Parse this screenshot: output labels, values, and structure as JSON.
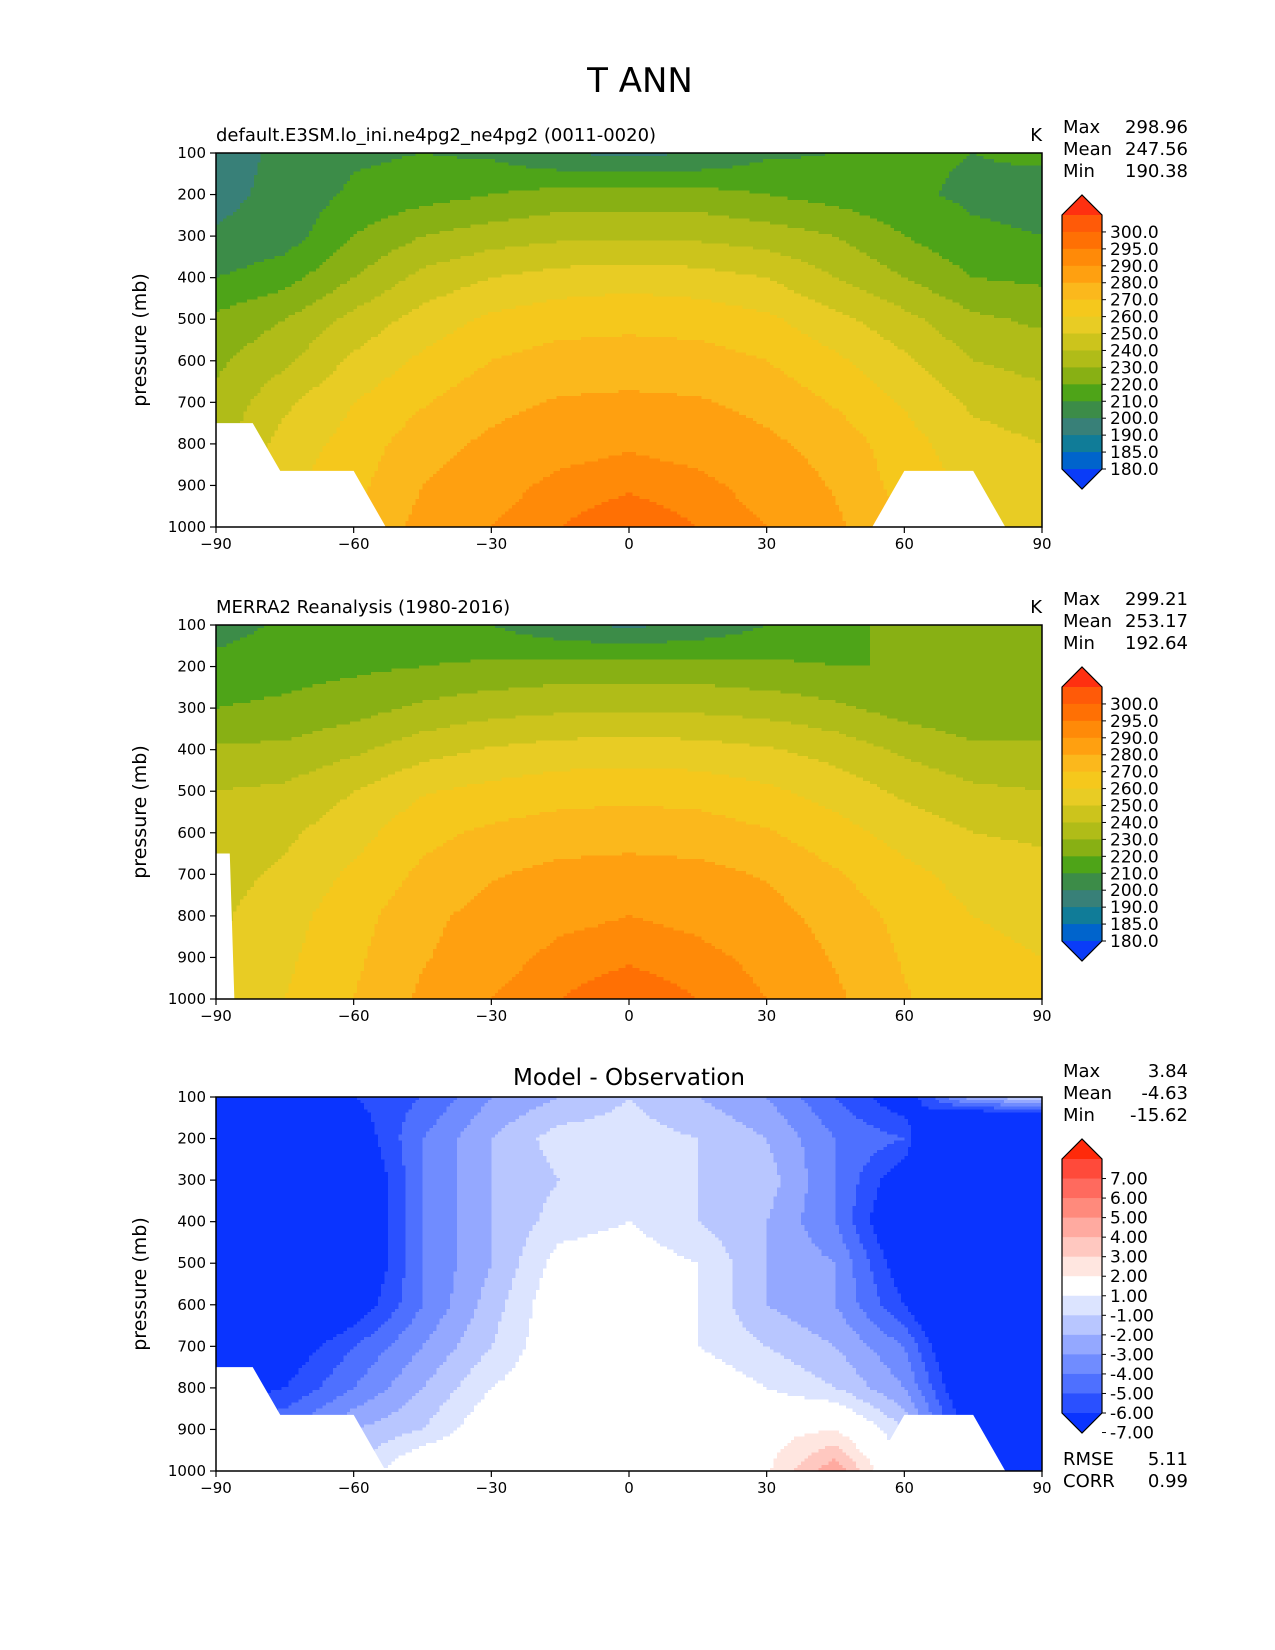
{
  "figure": {
    "title": "T ANN"
  },
  "chart_data": [
    {
      "type": "contour",
      "title": "default.E3SM.lo_ini.ne4pg2_ne4pg2 (0011-0020)",
      "units": "K",
      "ylabel": "pressure (mb)",
      "xlim": [
        -90,
        90
      ],
      "ylim": [
        1000,
        100
      ],
      "x_ticks": [
        "−90",
        "−60",
        "−30",
        "0",
        "30",
        "60",
        "90"
      ],
      "y_ticks": [
        "100",
        "200",
        "300",
        "400",
        "500",
        "600",
        "700",
        "800",
        "900",
        "1000"
      ],
      "stats": [
        {
          "label": "Max",
          "value": "298.96"
        },
        {
          "label": "Mean",
          "value": "247.56"
        },
        {
          "label": "Min",
          "value": "190.38"
        }
      ],
      "colorbar": {
        "labels": [
          "300.0",
          "295.0",
          "290.0",
          "280.0",
          "270.0",
          "260.0",
          "250.0",
          "240.0",
          "230.0",
          "220.0",
          "210.0",
          "200.0",
          "190.0",
          "185.0",
          "180.0"
        ],
        "colors": [
          "#ff3010",
          "#ff5a08",
          "#ff7004",
          "#ff8a08",
          "#ffa010",
          "#fbb81c",
          "#f5c81c",
          "#e8cc24",
          "#ccc41c",
          "#b0bc18",
          "#88b014",
          "#4ea418",
          "#3c8c48",
          "#388078",
          "#107c98",
          "#0064cc",
          "#0a3cf8"
        ]
      },
      "surface_left": [
        [
          -90,
          750
        ],
        [
          -82,
          750
        ],
        [
          -76,
          865
        ],
        [
          -60,
          865
        ],
        [
          -53,
          1000
        ],
        [
          -90,
          1000
        ]
      ],
      "surface_right": [
        [
          53,
          1000
        ],
        [
          60,
          865
        ],
        [
          75,
          865
        ],
        [
          82,
          1000
        ]
      ],
      "grid": {
        "x": [
          -90,
          -75,
          -60,
          -45,
          -30,
          -15,
          0,
          15,
          30,
          45,
          60,
          75,
          90
        ],
        "p": [
          100,
          200,
          300,
          400,
          500,
          600,
          700,
          800,
          900,
          1000
        ],
        "t": [
          [
            196,
            202,
            208,
            210,
            208,
            200,
            198,
            200,
            208,
            210,
            212,
            210,
            212
          ],
          [
            197,
            203,
            212,
            216,
            220,
            224,
            224,
            224,
            220,
            216,
            212,
            208,
            206
          ],
          [
            201,
            205,
            220,
            230,
            235,
            238,
            238,
            238,
            235,
            230,
            220,
            212,
            210
          ],
          [
            210,
            216,
            230,
            243,
            250,
            254,
            256,
            254,
            250,
            240,
            230,
            220,
            218
          ],
          [
            222,
            230,
            243,
            254,
            262,
            266,
            267,
            266,
            262,
            253,
            243,
            232,
            228
          ],
          [
            228,
            238,
            252,
            262,
            270,
            274,
            275,
            274,
            270,
            262,
            252,
            240,
            236
          ],
          [
            232,
            248,
            260,
            269,
            277,
            281,
            282,
            281,
            277,
            269,
            259,
            248,
            244
          ],
          [
            236,
            254,
            264,
            276,
            282,
            287,
            289,
            287,
            282,
            276,
            264,
            254,
            250
          ],
          [
            240,
            258,
            267,
            280,
            287,
            292,
            294,
            292,
            287,
            279,
            266,
            258,
            254
          ],
          [
            244,
            262,
            272,
            283,
            290,
            295,
            299,
            295,
            290,
            282,
            270,
            261,
            258
          ]
        ]
      }
    },
    {
      "type": "contour",
      "title": "MERRA2 Reanalysis (1980-2016)",
      "units": "K",
      "ylabel": "pressure (mb)",
      "xlim": [
        -90,
        90
      ],
      "ylim": [
        1000,
        100
      ],
      "x_ticks": [
        "−90",
        "−60",
        "−30",
        "0",
        "30",
        "60",
        "90"
      ],
      "y_ticks": [
        "100",
        "200",
        "300",
        "400",
        "500",
        "600",
        "700",
        "800",
        "900",
        "1000"
      ],
      "stats": [
        {
          "label": "Max",
          "value": "299.21"
        },
        {
          "label": "Mean",
          "value": "253.17"
        },
        {
          "label": "Min",
          "value": "192.64"
        }
      ],
      "colorbar": {
        "labels": [
          "300.0",
          "295.0",
          "290.0",
          "280.0",
          "270.0",
          "260.0",
          "250.0",
          "240.0",
          "230.0",
          "220.0",
          "210.0",
          "200.0",
          "190.0",
          "185.0",
          "180.0"
        ],
        "colors": [
          "#ff3010",
          "#ff5a08",
          "#ff7004",
          "#ff8a08",
          "#ffa010",
          "#fbb81c",
          "#f5c81c",
          "#e8cc24",
          "#ccc41c",
          "#b0bc18",
          "#88b014",
          "#4ea418",
          "#3c8c48",
          "#388078",
          "#107c98",
          "#0064cc",
          "#0a3cf8"
        ]
      },
      "surface_left": [
        [
          -90,
          650
        ],
        [
          -87,
          650
        ],
        [
          -86,
          1000
        ],
        [
          -90,
          1000
        ]
      ],
      "surface_right": [],
      "grid": {
        "x": [
          -90,
          -75,
          -60,
          -45,
          -30,
          -15,
          0,
          15,
          30,
          45,
          60,
          75,
          90
        ],
        "p": [
          100,
          200,
          300,
          400,
          500,
          600,
          700,
          800,
          900,
          1000
        ],
        "t": [
          [
            205,
            212,
            214,
            214,
            210,
            202,
            198,
            202,
            210,
            216,
            224,
            230,
            228
          ],
          [
            214,
            216,
            218,
            220,
            222,
            224,
            224,
            224,
            222,
            220,
            220,
            226,
            226
          ],
          [
            220,
            222,
            226,
            232,
            236,
            238,
            238,
            238,
            236,
            232,
            226,
            222,
            222
          ],
          [
            232,
            232,
            238,
            246,
            251,
            254,
            255,
            254,
            251,
            246,
            238,
            232,
            232
          ],
          [
            240,
            242,
            250,
            259,
            263,
            266,
            267,
            266,
            262,
            256,
            248,
            242,
            240
          ],
          [
            244,
            248,
            256,
            267,
            272,
            275,
            276,
            275,
            271,
            264,
            256,
            250,
            248
          ],
          [
            246,
            252,
            262,
            272,
            279,
            283,
            284,
            283,
            279,
            271,
            263,
            256,
            254
          ],
          [
            248,
            256,
            266,
            277,
            284,
            288,
            290,
            288,
            284,
            276,
            267,
            260,
            258
          ],
          [
            250,
            258,
            268,
            279,
            287,
            292,
            294,
            292,
            288,
            279,
            269,
            262,
            260
          ],
          [
            252,
            260,
            270,
            282,
            290,
            295,
            299,
            295,
            290,
            282,
            271,
            263,
            262
          ]
        ]
      }
    },
    {
      "type": "contour",
      "title": "Model - Observation",
      "ylabel": "pressure (mb)",
      "xlim": [
        -90,
        90
      ],
      "ylim": [
        1000,
        100
      ],
      "x_ticks": [
        "−90",
        "−60",
        "−30",
        "0",
        "30",
        "60",
        "90"
      ],
      "y_ticks": [
        "100",
        "200",
        "300",
        "400",
        "500",
        "600",
        "700",
        "800",
        "900",
        "1000"
      ],
      "stats": [
        {
          "label": "Max",
          "value": "3.84"
        },
        {
          "label": "Mean",
          "value": "-4.63"
        },
        {
          "label": "Min",
          "value": "-15.62"
        }
      ],
      "bottom_stats": [
        {
          "label": "RMSE",
          "value": "5.11"
        },
        {
          "label": "CORR",
          "value": "0.99"
        }
      ],
      "colorbar": {
        "labels": [
          "7.00",
          "6.00",
          "5.00",
          "4.00",
          "3.00",
          "2.00",
          "1.00",
          "-1.00",
          "-2.00",
          "-3.00",
          "-4.00",
          "-5.00",
          "-6.00",
          "-7.00"
        ],
        "colors": [
          "#ff2a0a",
          "#ff4a3a",
          "#ff6a5e",
          "#ff8a7c",
          "#ffaaa0",
          "#ffc8c0",
          "#ffe6e0",
          "#ffffff",
          "#dce4ff",
          "#b8c6ff",
          "#94a8ff",
          "#708cff",
          "#4e70ff",
          "#2a50ff",
          "#0a34ff"
        ]
      },
      "surface_left": [
        [
          -90,
          750
        ],
        [
          -82,
          750
        ],
        [
          -76,
          865
        ],
        [
          -60,
          865
        ],
        [
          -53,
          1000
        ],
        [
          -90,
          1000
        ]
      ],
      "surface_right": [
        [
          53,
          1000
        ],
        [
          60,
          865
        ],
        [
          75,
          865
        ],
        [
          82,
          1000
        ]
      ],
      "grid": {
        "x": [
          -90,
          -75,
          -60,
          -45,
          -30,
          -15,
          0,
          15,
          30,
          45,
          60,
          75,
          90
        ],
        "p": [
          100,
          200,
          300,
          400,
          500,
          600,
          700,
          800,
          900,
          1000
        ],
        "t": [
          [
            -9,
            -10,
            -7,
            -6,
            -4,
            -3,
            -2,
            -3,
            -4,
            -6,
            -8,
            -3,
            -2
          ],
          [
            -12,
            -11,
            -8,
            -5,
            -3,
            -1.5,
            -1.5,
            -2,
            -3,
            -5,
            -6,
            -15,
            -16
          ],
          [
            -14,
            -13,
            -9,
            -5,
            -3,
            -2,
            -2,
            -2,
            -2.5,
            -5,
            -8,
            -14,
            -14
          ],
          [
            -15,
            -12,
            -9,
            -5,
            -3,
            -1.5,
            -1,
            -2,
            -3,
            -5,
            -9,
            -13,
            -14
          ],
          [
            -12,
            -11,
            -9,
            -5,
            -3,
            -0.5,
            -0.3,
            -1,
            -3,
            -4,
            -8,
            -12,
            -14
          ],
          [
            -10,
            -10,
            -8,
            -5,
            -2.5,
            0,
            0.1,
            -1,
            -3,
            -4,
            -7,
            -11,
            -14
          ],
          [
            -8,
            -8,
            -6,
            -4,
            -2,
            0,
            0.2,
            -1,
            -2,
            -3,
            -5,
            -10,
            -14
          ],
          [
            -8,
            -7,
            -5,
            -3,
            -1,
            0,
            0.3,
            0,
            -1,
            -2,
            -4,
            -9,
            -14
          ],
          [
            -6,
            -5,
            -3,
            -2,
            0,
            0.2,
            0.3,
            0.3,
            0.5,
            1,
            -2,
            -8,
            -12
          ],
          [
            -4,
            -3,
            -2,
            0.5,
            0.5,
            0.3,
            0.3,
            0.5,
            0.8,
            3.8,
            -1,
            -6,
            -10
          ]
        ]
      }
    }
  ]
}
